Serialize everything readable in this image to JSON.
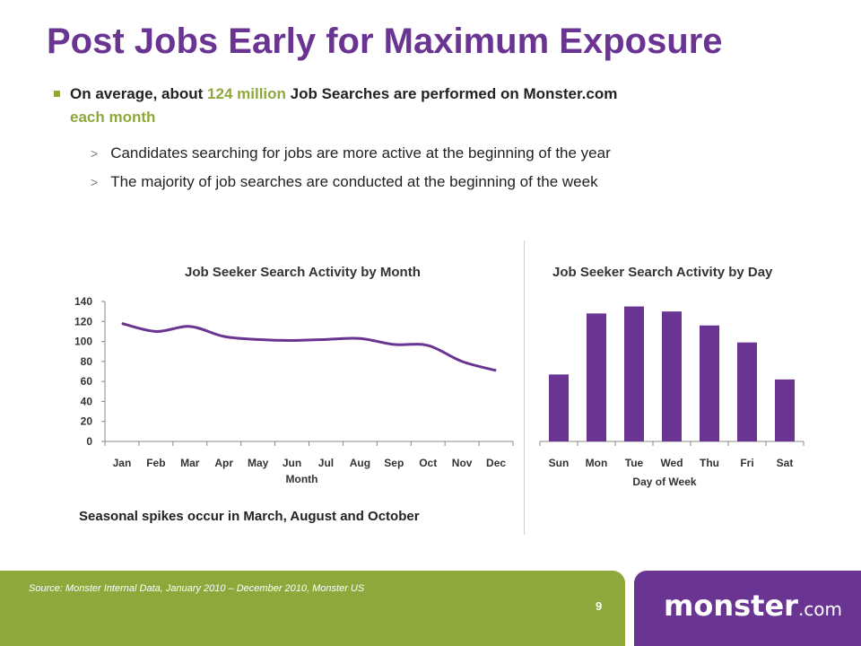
{
  "slide": {
    "title": "Post Jobs Early for Maximum Exposure",
    "bullet": {
      "prefix": "On average, about ",
      "highlight1": "124 million",
      "middle": " Job Searches are performed on Monster.com",
      "highlight2": "each month"
    },
    "sub_bullets": [
      "Candidates searching for jobs are more active at the beginning of the year",
      "The majority of job searches are conducted at the beginning of the week"
    ],
    "sub_bullet_marker": ">",
    "caption": "Seasonal spikes occur in March, August and October",
    "source": "Source:  Monster Internal Data, January 2010 – December 2010, Monster US",
    "page_number": "9",
    "logo": {
      "main": "monster",
      "suffix": ".com"
    },
    "colors": {
      "purple": "#6a3592",
      "green": "#8fa83c"
    }
  },
  "chart_data": [
    {
      "type": "line",
      "title": "Job Seeker Search Activity by Month",
      "xlabel": "Month",
      "ylabel": "",
      "categories": [
        "Jan",
        "Feb",
        "Mar",
        "Apr",
        "May",
        "Jun",
        "Jul",
        "Aug",
        "Sep",
        "Oct",
        "Nov",
        "Dec"
      ],
      "values": [
        118,
        110,
        115,
        105,
        102,
        101,
        102,
        103,
        97,
        96,
        80,
        71
      ],
      "ylim": [
        0,
        140
      ],
      "yticks": [
        0,
        20,
        40,
        60,
        80,
        100,
        120,
        140
      ],
      "grid": false,
      "color": "#6a3592"
    },
    {
      "type": "bar",
      "title": "Job Seeker Search Activity by Day",
      "xlabel": "Day of Week",
      "ylabel": "",
      "categories": [
        "Sun",
        "Mon",
        "Tue",
        "Wed",
        "Thu",
        "Fri",
        "Sat"
      ],
      "values": [
        67,
        128,
        135,
        130,
        116,
        99,
        62
      ],
      "ylim": [
        0,
        140
      ],
      "grid": false,
      "color": "#6a3592"
    }
  ]
}
